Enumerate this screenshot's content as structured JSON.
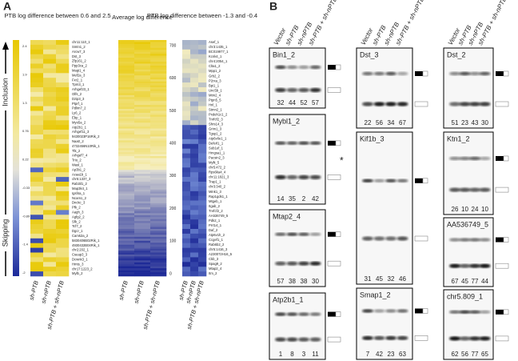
{
  "panel_a": {
    "label": "A",
    "heatmaps": [
      {
        "title": "PTB log difference between 0.6 and 2.5",
        "genes": [
          "chr11:110_1",
          "Smtn1_2",
          "Arcw7_3",
          "Dst_3",
          "Zfp161_2",
          "Ppp3ca_2",
          "Magi1_4",
          "Mef2a_3",
          "Fxr2_1",
          "Tpm3_1",
          "Arhgef23_1",
          "Olfs_2",
          "Dzip3_3",
          "Ptprf_1",
          "Pdlim7_2",
          "Ly6_2",
          "Ebp_1",
          "Myo5a_2",
          "Atp2b1_1",
          "Arhgef11_3",
          "9430023P16Rik_2",
          "Naa0_2",
          "4732456N10Rik_1",
          "Tlk_2",
          "Arhgef7_4",
          "Trio_2",
          "Wasl_1",
          "Ap3b1_2",
          "Acaa1b_1",
          "chr5:1337_3",
          "Rab3il1_2",
          "Map3k4_1",
          "Igsf4a_1",
          "Ncam1_2",
          "Dnckc_3",
          "Pfk_2",
          "Aagh_3",
          "Agfg2_2",
          "Sfk_2",
          "Tcf7_2",
          "Dgcr_1",
          "Camk2a_2",
          "5830406B02Rik_1",
          "4930432B04Rik_1",
          "chr2:202_1",
          "Cseap3_3",
          "Dcwnk3_1",
          "Hmts_3",
          "chr17:1223_2",
          "Mylb_2"
        ]
      },
      {
        "title": "Average log difference",
        "yticks": [
          "0",
          "100",
          "200",
          "300",
          "400",
          "500",
          "600",
          "700"
        ]
      },
      {
        "title": "PTB log difference between -1.3 and -0.4",
        "genes": [
          "Asef_1",
          "chr3:1435_1",
          "BC019977_1",
          "Kcnk4_1",
          "chr4:2054_1",
          "Clta1_2",
          "Mpp1_2",
          "Grb2_2",
          "P2rxa_3",
          "Bpi1_1",
          "Unc5b_1",
          "Mtm2_4",
          "Ptpn5_5",
          "Hnl_1",
          "Stmn2_1",
          "Pxdeh1c1_2",
          "Tnrfcf2_3",
          "Shrs14_3",
          "Grim1_3",
          "Tgsp1_2",
          "Atp6v0e1_1",
          "Deferl1_1",
          "Sub1ef_1",
          "Hmgsa1_1",
          "Pacsin2_3",
          "Mylk_5",
          "chr5:472_2",
          "Rps6ka4_4",
          "chr11:1821_3",
          "Trap1_1",
          "chr3:340_2",
          "Mink1_3",
          "Rap1gds1_1",
          "Mtgeb_1",
          "Itgab_2",
          "Tnrfcf2_2",
          "AA536749_5",
          "Pdk2_1",
          "Prrt14_1",
          "Daf_2",
          "Atp6v1h_2",
          "Ccgef1_1",
          "Rab6b2_2",
          "chr5:1416_3",
          "A230072H16_5",
          "Ckb_3",
          "Spag9_2",
          "Mtap2_4",
          "Itm_2"
        ]
      }
    ],
    "colorbar_ticks": [
      "2.4",
      "1.9",
      "1.3",
      "0.76",
      "0.22",
      "-0.33",
      "-0.89",
      "-1.4",
      "-2"
    ],
    "sample_labels": [
      "sh-PTB",
      "sh-nPTB",
      "sh-PTB + sh-nPTB"
    ],
    "inclusion_label": "Inclusion",
    "skipping_label": "Skipping"
  },
  "panel_b": {
    "label": "B",
    "lanes": [
      "Vector",
      "sh-PTB",
      "sh-nPTB",
      "sh-PTB + sh-nPTB"
    ],
    "asterisk": "*",
    "columns": [
      [
        {
          "name": "Bin1_2",
          "values": [
            "32",
            "44",
            "52",
            "57"
          ]
        },
        {
          "name": "Mybl1_2",
          "values": [
            "14",
            "35",
            "2",
            "42"
          ]
        },
        {
          "name": "Mtap2_4",
          "values": [
            "57",
            "38",
            "38",
            "30"
          ]
        },
        {
          "name": "Atp2b1_1",
          "values": [
            "1",
            "8",
            "3",
            "11"
          ]
        }
      ],
      [
        {
          "name": "Dst_3",
          "values": [
            "22",
            "56",
            "34",
            "67"
          ]
        },
        {
          "name": "Kif1b_3",
          "values": [
            "31",
            "45",
            "32",
            "46"
          ]
        },
        {
          "name": "Smap1_2",
          "values": [
            "7",
            "42",
            "23",
            "63"
          ]
        }
      ],
      [
        {
          "name": "Dst_2",
          "values": [
            "51",
            "23",
            "43",
            "30"
          ]
        },
        {
          "name": "Ktn1_2",
          "values": [
            "26",
            "10",
            "24",
            "10"
          ]
        },
        {
          "name": "AA536749_5",
          "values": [
            "67",
            "45",
            "77",
            "44"
          ]
        },
        {
          "name": "chr5.809_1",
          "values": [
            "62",
            "56",
            "77",
            "65"
          ]
        }
      ]
    ]
  }
}
